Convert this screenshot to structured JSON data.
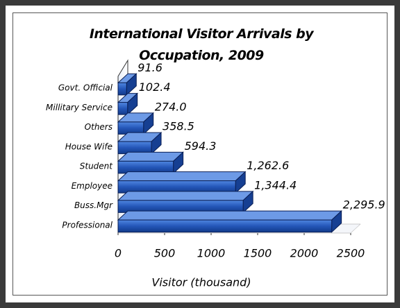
{
  "chart_data": {
    "type": "bar3d_horizontal",
    "title": "International Visitor Arrivals by Occupation, 2009",
    "categories": [
      "Govt. Official",
      "Millitary Service",
      "Others",
      "House Wife",
      "Student",
      "Employee",
      "Buss.Mgr",
      "Professional"
    ],
    "values": [
      91.6,
      102.4,
      274.0,
      358.5,
      594.3,
      1262.6,
      1344.4,
      2295.9
    ],
    "value_labels": [
      "91.6",
      "102.4",
      "274.0",
      "358.5",
      "594.3",
      "1,262.6",
      "1,344.4",
      "2,295.9"
    ],
    "color": "#2456b8",
    "xlim": [
      0,
      2500
    ],
    "xticks": [
      0,
      500,
      1000,
      1500,
      2000,
      2500
    ],
    "xlabel": "Visitor (thousand)"
  }
}
